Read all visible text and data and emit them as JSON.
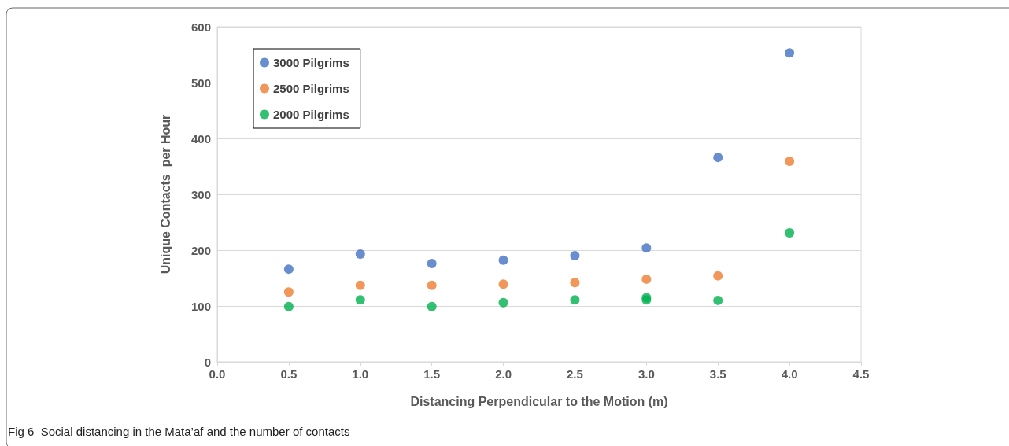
{
  "chart_data": {
    "type": "scatter",
    "xlabel": "Distancing Perpendicular to the Motion (m)",
    "ylabel": "Unique Contacts  per Hour",
    "annotations": [
      "Fig 6  Social distancing in the Mata’af and the number of contacts"
    ],
    "x": [
      0.5,
      1.0,
      1.5,
      2.0,
      2.5,
      3.0,
      3.5,
      4.0
    ],
    "series": [
      {
        "name": "3000 Pilgrims",
        "color": "#4472c4",
        "values": [
          166,
          193,
          176,
          182,
          190,
          204,
          366,
          553
        ]
      },
      {
        "name": "2500 Pilgrims",
        "color": "#ed7d31",
        "values": [
          125,
          137,
          137,
          139,
          142,
          148,
          154,
          359
        ]
      },
      {
        "name": "2000 Pilgrims",
        "color": "#00b050",
        "x": [
          0.5,
          1.0,
          1.5,
          2.0,
          2.5,
          3.0,
          3.0,
          3.5,
          4.0
        ],
        "values": [
          99,
          111,
          99,
          106,
          111,
          115,
          111,
          110,
          231
        ]
      }
    ],
    "xlim": [
      0,
      4.5
    ],
    "xticks": [
      {
        "value": 0,
        "label": "0.0"
      },
      {
        "value": 0.5,
        "label": "0.5"
      },
      {
        "value": 1,
        "label": "1.0"
      },
      {
        "value": 1.5,
        "label": "1.5"
      },
      {
        "value": 2,
        "label": "2.0"
      },
      {
        "value": 2.5,
        "label": "2.5"
      },
      {
        "value": 3,
        "label": "3.0"
      },
      {
        "value": 3.5,
        "label": "3.5"
      },
      {
        "value": 4,
        "label": "4.0"
      },
      {
        "value": 4.5,
        "label": "4.5"
      }
    ],
    "ylim": [
      0,
      600
    ],
    "yticks": [
      0,
      100,
      200,
      300,
      400,
      500,
      600
    ],
    "grid": "y",
    "legend": "top left",
    "marker": "circle"
  }
}
